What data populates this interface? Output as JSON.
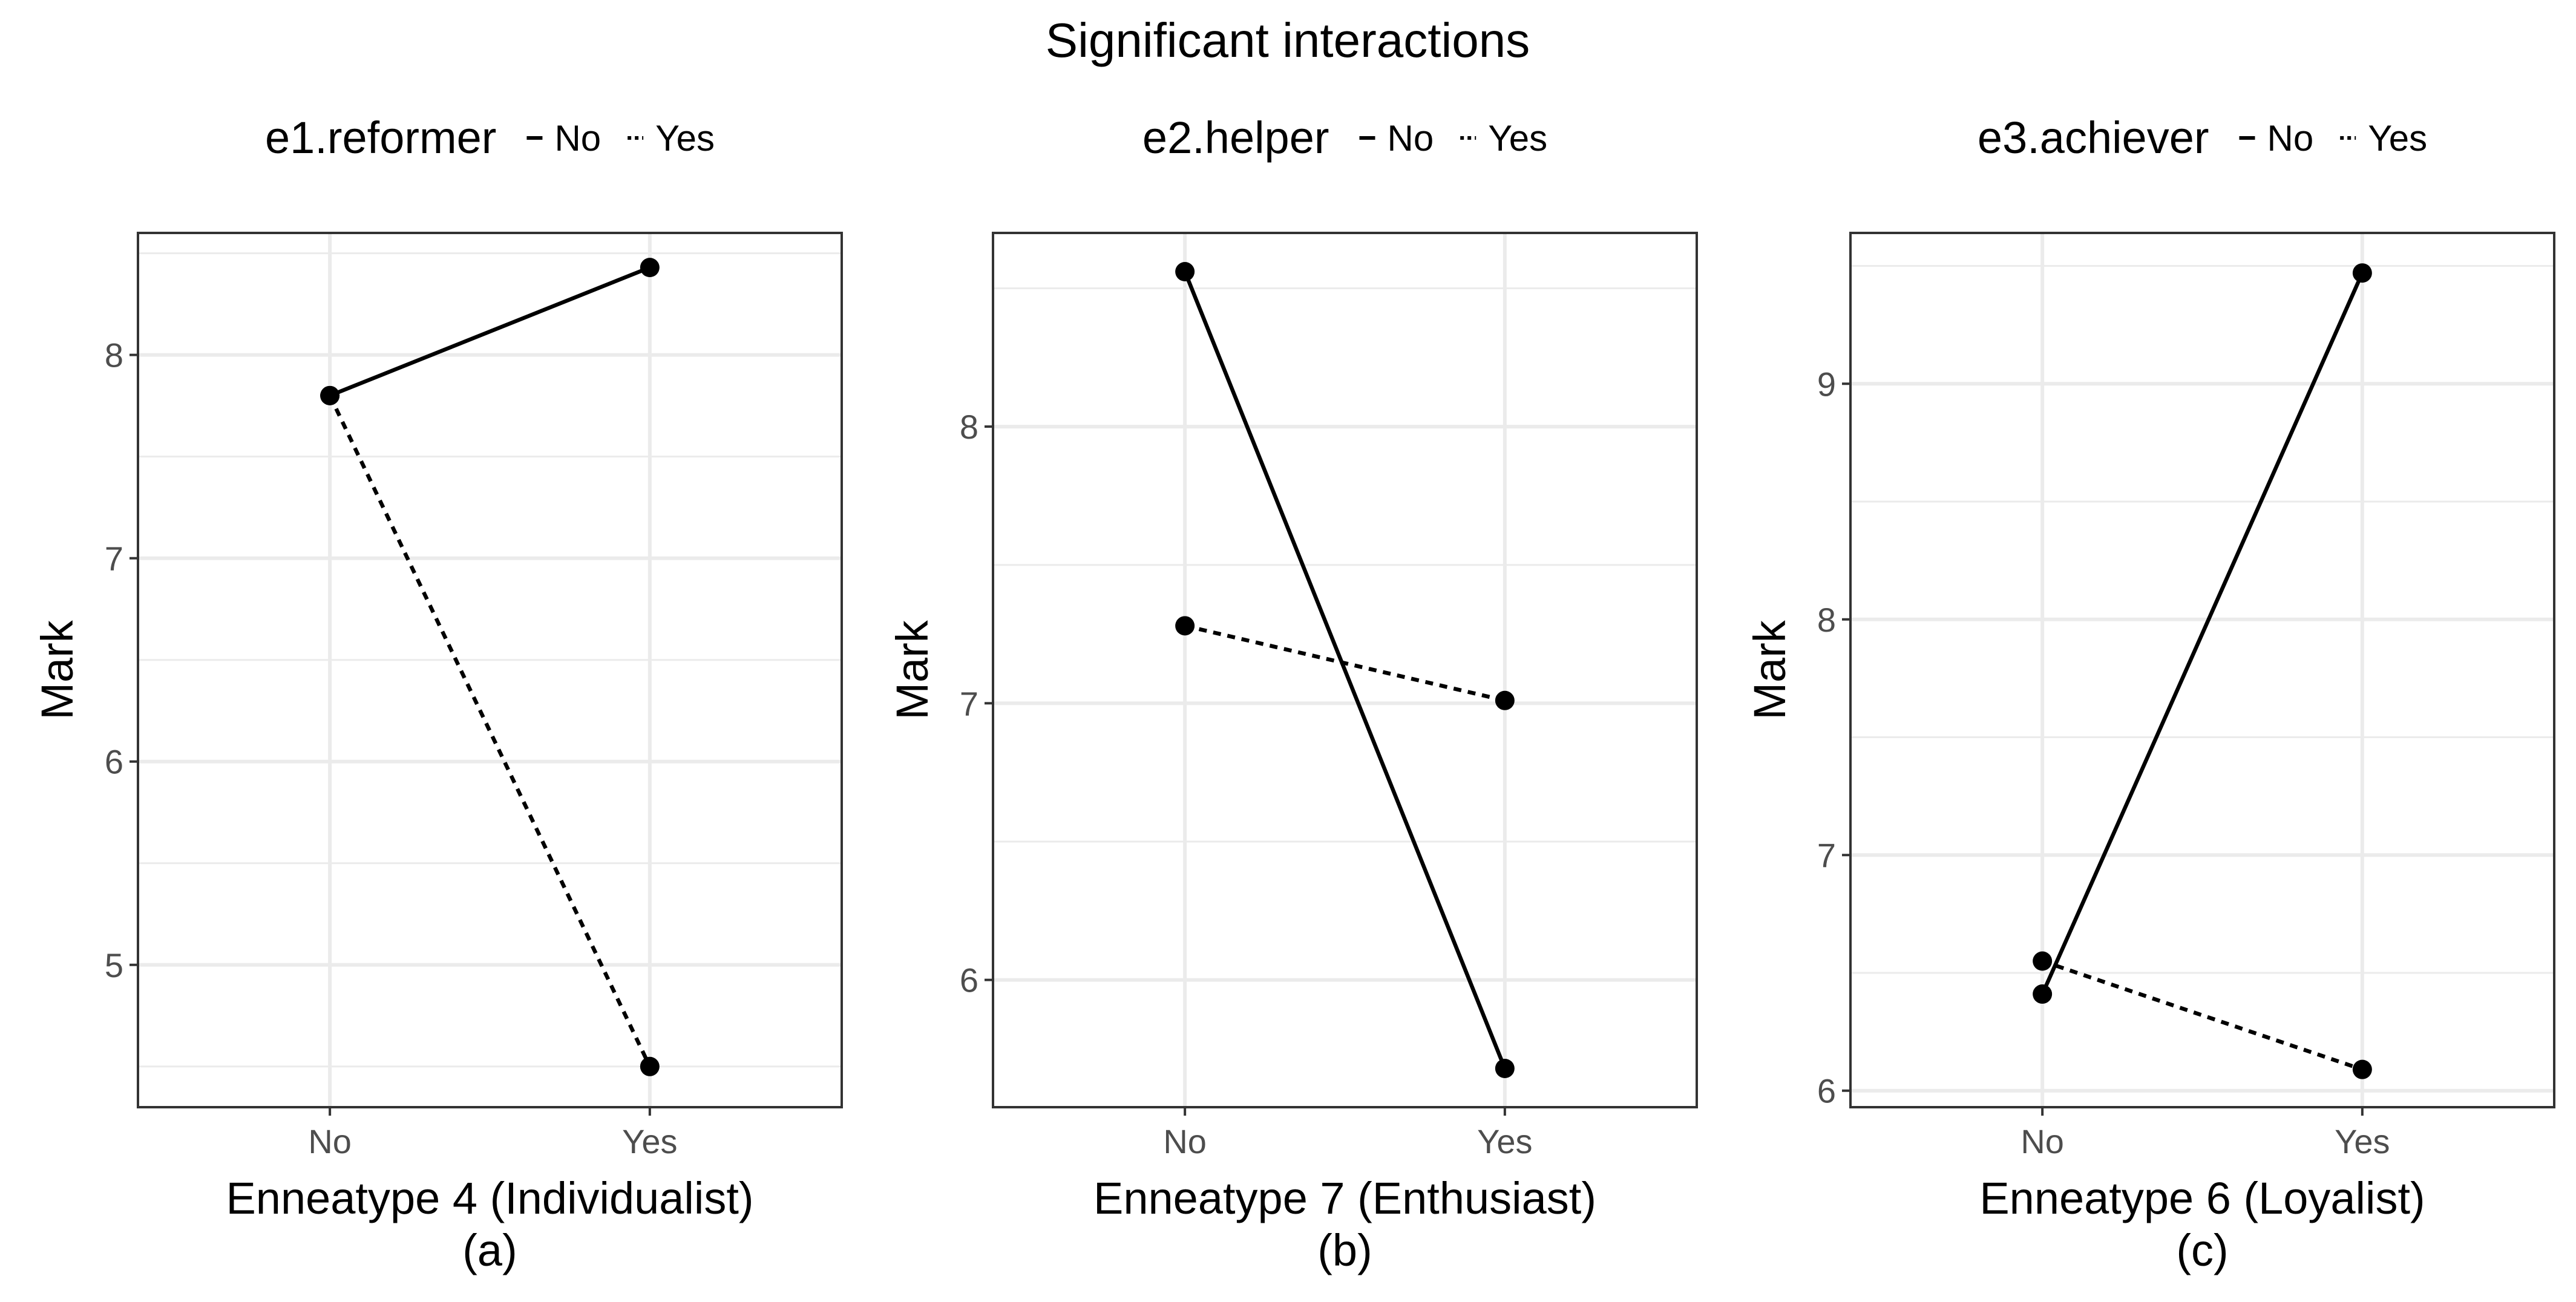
{
  "chart_data": {
    "title": "Significant interactions",
    "panels": [
      {
        "type": "line",
        "legend_title": "e1.reformer",
        "legend_items": [
          "No",
          "Yes"
        ],
        "x": [
          "No",
          "Yes"
        ],
        "xlabel": "Enneatype 4 (Individualist)",
        "caption": "(a)",
        "ylabel": "Mark",
        "ylim": [
          4.3,
          8.6
        ],
        "yticks": [
          "5",
          "6",
          "7",
          "8"
        ],
        "series": [
          {
            "name": "No",
            "style": "solid",
            "values": [
              7.8,
              8.43
            ]
          },
          {
            "name": "Yes",
            "style": "dashed",
            "values": [
              7.8,
              4.5
            ]
          }
        ]
      },
      {
        "type": "line",
        "legend_title": "e2.helper",
        "legend_items": [
          "No",
          "Yes"
        ],
        "x": [
          "No",
          "Yes"
        ],
        "xlabel": "Enneatype 7 (Enthusiast)",
        "caption": "(b)",
        "ylabel": "Mark",
        "ylim": [
          5.54,
          8.7
        ],
        "yticks": [
          "6",
          "7",
          "8"
        ],
        "series": [
          {
            "name": "No",
            "style": "solid",
            "values": [
              8.56,
              5.68
            ]
          },
          {
            "name": "Yes",
            "style": "dashed",
            "values": [
              7.28,
              7.01
            ]
          }
        ]
      },
      {
        "type": "line",
        "legend_title": "e3.achiever",
        "legend_items": [
          "No",
          "Yes"
        ],
        "x": [
          "No",
          "Yes"
        ],
        "xlabel": "Enneatype 6 (Loyalist)",
        "caption": "(c)",
        "ylabel": "Mark",
        "ylim": [
          5.93,
          9.64
        ],
        "yticks": [
          "6",
          "7",
          "8",
          "9"
        ],
        "series": [
          {
            "name": "No",
            "style": "solid",
            "values": [
              6.41,
              9.47
            ]
          },
          {
            "name": "Yes",
            "style": "dashed",
            "values": [
              6.55,
              6.09
            ]
          }
        ]
      }
    ]
  }
}
